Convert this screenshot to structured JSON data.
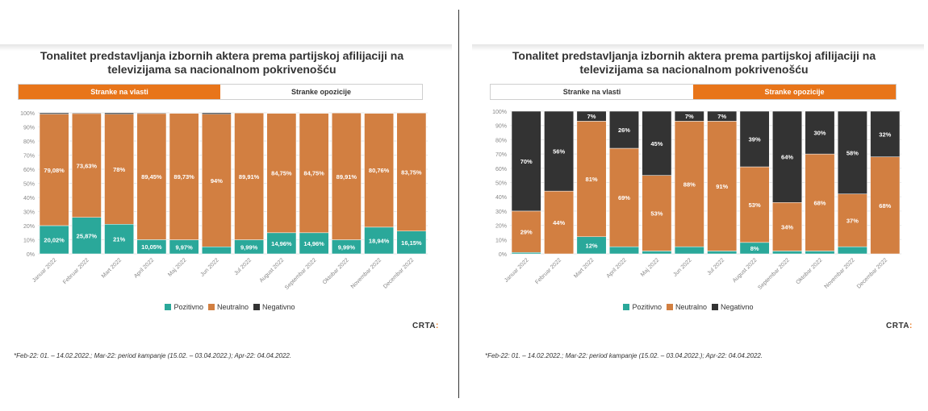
{
  "colors": {
    "pozitivno": "#2aa89a",
    "neutralno": "#d27f41",
    "negativno": "#333333",
    "accent": "#e8751a"
  },
  "legend": {
    "pozitivno": "Pozitivno",
    "neutralno": "Neutralno",
    "negativno": "Negativno"
  },
  "logo": "CRTA",
  "left": {
    "title_line1": "Tonalitet predstavljanja izbornih aktera prema partijskoj afilijaciji na",
    "title_line2": "televizijama sa nacionalnom pokrivenošću",
    "tab_active": "Stranke na vlasti",
    "tab_inactive": "Stranke opozicije",
    "footnote": "*Feb-22: 01. – 14.02.2022.; Mar-22: period kampanje (15.02. – 03.04.2022.); Apr-22: 04.04.2022."
  },
  "right": {
    "title_line1": "Tonalitet predstavljanja izbornih aktera prema partijskoj afilijaciji na",
    "title_line2": "televizijama sa nacionalnom pokrivenošću",
    "tab_inactive": "Stranke na vlasti",
    "tab_active": "Stranke opozicije",
    "footnote": "*Feb-22: 01. – 14.02.2022.; Mar-22: period kampanje (15.02. – 03.04.2022.); Apr-22: 04.04.2022."
  },
  "chart_data": [
    {
      "type": "bar",
      "stacked": true,
      "title": "Tonalitet predstavljanja izbornih aktera prema partijskoj afilijaciji na televizijama sa nacionalnom pokrivenošću",
      "tab": "Stranke na vlasti",
      "categories": [
        "Januar 2022",
        "Februar 2022",
        "Mart 2022",
        "April 2022",
        "Maj 2022",
        "Jun 2022",
        "Jul 2022",
        "August 2022",
        "Septembar 2022",
        "Oktobar 2022",
        "Novembar 2022",
        "Decembar 2022"
      ],
      "yticks": [
        "0%",
        "10%",
        "20%",
        "30%",
        "40%",
        "50%",
        "60%",
        "70%",
        "80%",
        "90%",
        "100%"
      ],
      "ylim": [
        0,
        100
      ],
      "series": [
        {
          "name": "Pozitivno",
          "values": [
            20.02,
            25.87,
            21,
            10.05,
            9.97,
            5,
            9.99,
            14.96,
            14.96,
            9.99,
            18.94,
            16.15
          ],
          "labels": [
            "20,02%",
            "25,87%",
            "21%",
            "10,05%",
            "9,97%",
            "",
            "9,99%",
            "14,96%",
            "14,96%",
            "9,99%",
            "18,94%",
            "16,15%"
          ]
        },
        {
          "name": "Neutralno",
          "values": [
            79.08,
            73.63,
            78,
            89.45,
            89.73,
            94,
            89.91,
            84.75,
            84.75,
            89.91,
            80.76,
            83.75
          ],
          "labels": [
            "79,08%",
            "73,63%",
            "78%",
            "89,45%",
            "89,73%",
            "94%",
            "89,91%",
            "84,75%",
            "84,75%",
            "89,91%",
            "80,76%",
            "83,75%"
          ]
        },
        {
          "name": "Negativno",
          "values": [
            0.9,
            0.5,
            1,
            0.5,
            0.3,
            1,
            0.1,
            0.29,
            0.29,
            0.1,
            0.3,
            0.1
          ],
          "labels": [
            "",
            "",
            "",
            "",
            "",
            "",
            "",
            "",
            "",
            "",
            "",
            ""
          ]
        }
      ]
    },
    {
      "type": "bar",
      "stacked": true,
      "title": "Tonalitet predstavljanja izbornih aktera prema partijskoj afilijaciji na televizijama sa nacionalnom pokrivenošću",
      "tab": "Stranke opozicije",
      "categories": [
        "Januar 2022",
        "Februar 2022",
        "Mart 2022",
        "April 2022",
        "Maj 2022",
        "Jun 2022",
        "Jul 2022",
        "August 2022",
        "Septembar 2022",
        "Oktobar 2022",
        "Novembar 2022",
        "Decembar 2022"
      ],
      "yticks": [
        "0%",
        "10%",
        "20%",
        "30%",
        "40%",
        "50%",
        "60%",
        "70%",
        "80%",
        "90%",
        "100%"
      ],
      "ylim": [
        0,
        100
      ],
      "series": [
        {
          "name": "Pozitivno",
          "values": [
            1,
            0,
            12,
            5,
            2,
            5,
            2,
            8,
            2,
            2,
            5,
            0
          ],
          "labels": [
            "",
            "",
            "12%",
            "",
            "",
            "",
            "",
            "8%",
            "",
            "",
            "",
            ""
          ]
        },
        {
          "name": "Neutralno",
          "values": [
            29,
            44,
            81,
            69,
            53,
            88,
            91,
            53,
            34,
            68,
            37,
            68
          ],
          "labels": [
            "29%",
            "44%",
            "81%",
            "69%",
            "53%",
            "88%",
            "91%",
            "53%",
            "34%",
            "68%",
            "37%",
            "68%"
          ]
        },
        {
          "name": "Negativno",
          "values": [
            70,
            56,
            7,
            26,
            45,
            7,
            7,
            39,
            64,
            30,
            58,
            32
          ],
          "labels": [
            "70%",
            "56%",
            "7%",
            "26%",
            "45%",
            "7%",
            "7%",
            "39%",
            "64%",
            "30%",
            "58%",
            "32%"
          ]
        }
      ]
    }
  ]
}
